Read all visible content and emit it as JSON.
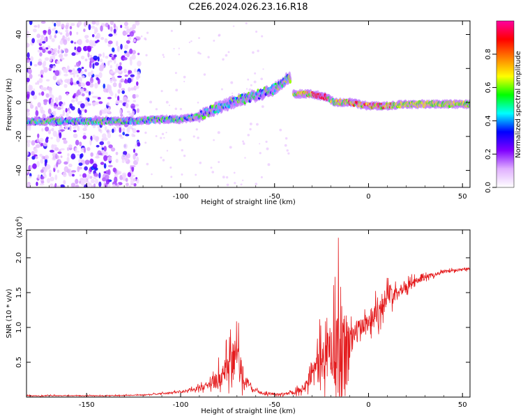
{
  "title": "C2E6.2024.026.23.16.R18",
  "chart_data": [
    {
      "type": "heatmap",
      "xlabel": "Height of straight line (km)",
      "ylabel": "Frequency (Hz)",
      "xlim": [
        -182,
        54
      ],
      "ylim": [
        -50,
        48
      ],
      "xticks": [
        -150,
        -100,
        -50,
        0,
        50
      ],
      "yticks": [
        -40,
        -20,
        0,
        20,
        40
      ],
      "xtick_labels": [
        "-150",
        "-100",
        "-50",
        "0",
        "50"
      ],
      "ytick_labels": [
        "-40",
        "-20",
        "0",
        "20",
        "40"
      ],
      "colorbar": {
        "label": "Normalized spectral amplitude",
        "range": [
          0,
          1
        ],
        "ticks": [
          0,
          0.2,
          0.4,
          0.6,
          0.8
        ],
        "tick_labels": [
          "0.0",
          "0.2",
          "0.4",
          "0.6",
          "0.8"
        ],
        "colors": [
          "#ffffff",
          "#e0b0ff",
          "#8000ff",
          "#0000ff",
          "#00ffff",
          "#00ff00",
          "#ffff00",
          "#ff8000",
          "#ff0000",
          "#ff00a0"
        ]
      },
      "ridge": {
        "x": [
          -180,
          -160,
          -140,
          -125,
          -110,
          -100,
          -90,
          -80,
          -70,
          -60,
          -50,
          -42,
          -40,
          -30,
          -22,
          -18,
          -10,
          0,
          10,
          20,
          30,
          40,
          53
        ],
        "freq": [
          -11,
          -11,
          -11,
          -11,
          -10,
          -10,
          -8,
          -3,
          1,
          4,
          8,
          15,
          5,
          5,
          3,
          0,
          0,
          -2,
          -2,
          -1,
          -1,
          -1,
          -1
        ]
      },
      "noise_region_x": [
        -182,
        -122
      ]
    },
    {
      "type": "line",
      "xlabel": "Height of straight line (km)",
      "ylabel": "SNR (10 * v/v)",
      "y_multiplier": "(x10",
      "y_multiplier_exp": "4",
      "y_multiplier_close": ")",
      "xlim": [
        -182,
        54
      ],
      "ylim": [
        0,
        2.4
      ],
      "xticks": [
        -150,
        -100,
        -50,
        0,
        50
      ],
      "yticks": [
        0.5,
        1.0,
        1.5,
        2.0
      ],
      "xtick_labels": [
        "-150",
        "-100",
        "-50",
        "0",
        "50"
      ],
      "ytick_labels": [
        "0.5",
        "1.0",
        "1.5",
        "2.0"
      ],
      "color": "#e41a1c",
      "envelope": {
        "x": [
          -182,
          -140,
          -120,
          -105,
          -95,
          -85,
          -75,
          -72,
          -70,
          -68,
          -66,
          -62,
          -55,
          -45,
          -35,
          -32,
          -28,
          -22,
          -18,
          -15,
          -13,
          -11,
          -10,
          -8,
          -4,
          0,
          5,
          10,
          20,
          30,
          40,
          54
        ],
        "base": [
          0.02,
          0.02,
          0.03,
          0.06,
          0.1,
          0.17,
          0.35,
          0.55,
          0.55,
          0.4,
          0.25,
          0.1,
          0.05,
          0.04,
          0.12,
          0.3,
          0.4,
          0.6,
          0.7,
          0.75,
          0.55,
          0.7,
          0.75,
          0.9,
          1.0,
          1.1,
          1.25,
          1.45,
          1.6,
          1.72,
          1.8,
          1.84
        ],
        "amp": [
          0.01,
          0.01,
          0.01,
          0.02,
          0.04,
          0.08,
          0.4,
          0.6,
          0.6,
          0.4,
          0.15,
          0.05,
          0.03,
          0.03,
          0.08,
          0.2,
          0.45,
          0.6,
          0.9,
          1.4,
          1.1,
          0.9,
          0.5,
          0.3,
          0.25,
          0.25,
          0.3,
          0.25,
          0.12,
          0.06,
          0.04,
          0.03
        ]
      }
    }
  ]
}
